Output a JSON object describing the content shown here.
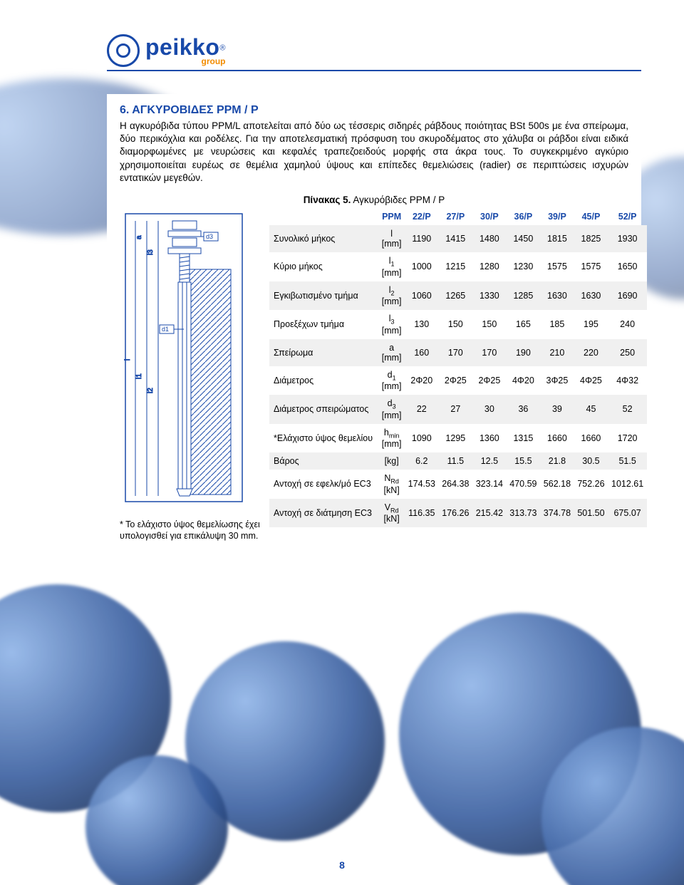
{
  "logo": {
    "name": "peikko",
    "sub": "group"
  },
  "section": {
    "number": "6.",
    "title": "ΑΓΚΥΡΟΒΙΔΕΣ PPM / P"
  },
  "paragraph": "Η αγκυρόβιδα τύπου PPM/L αποτελείται από δύο ως τέσσερις σιδηρές ράβδους ποιότητας BSt 500s με ένα σπείρωμα, δύο περικόχλια και ροδέλες. Για την αποτελεσματική πρόσφυση του σκυροδέματος στο χάλυβα οι ράβδοι είναι ειδικά διαμορφωμένες με νευρώσεις και κεφαλές τραπεζοειδούς μορφής στα άκρα τους. Το συγκεκριμένο αγκύριο χρησιμοποιείται ευρέως σε θεμέλια χαμηλού ύψους και επίπεδες θεμελιώσεις (radier) σε περιπτώσεις ισχυρών εντατικών μεγεθών.",
  "table": {
    "caption_bold": "Πίνακας 5.",
    "caption_rest": " Αγκυρόβιδες PPM / P",
    "head": [
      "PPM",
      "22/P",
      "27/P",
      "30/P",
      "36/P",
      "39/P",
      "45/P",
      "52/P"
    ],
    "rows": [
      {
        "label": "Συνολικό μήκος",
        "sym": "l",
        "unit": "[mm]",
        "v": [
          "1190",
          "1415",
          "1480",
          "1450",
          "1815",
          "1825",
          "1930"
        ]
      },
      {
        "label": "Κύριο μήκος",
        "sym": "l",
        "sub": "1",
        "unit": "[mm]",
        "v": [
          "1000",
          "1215",
          "1280",
          "1230",
          "1575",
          "1575",
          "1650"
        ]
      },
      {
        "label": "Εγκιβωτισμένο τμήμα",
        "sym": "l",
        "sub": "2",
        "unit": "[mm]",
        "v": [
          "1060",
          "1265",
          "1330",
          "1285",
          "1630",
          "1630",
          "1690"
        ]
      },
      {
        "label": "Προεξέχων τμήμα",
        "sym": "l",
        "sub": "3",
        "unit": "[mm]",
        "v": [
          "130",
          "150",
          "150",
          "165",
          "185",
          "195",
          "240"
        ]
      },
      {
        "label": "Σπείρωμα",
        "sym": "a",
        "unit": "[mm]",
        "v": [
          "160",
          "170",
          "170",
          "190",
          "210",
          "220",
          "250"
        ]
      },
      {
        "label": "Διάμετρος",
        "sym": "d",
        "sub": "1",
        "unit": "[mm]",
        "v": [
          "2Φ20",
          "2Φ25",
          "2Φ25",
          "4Φ20",
          "3Φ25",
          "4Φ25",
          "4Φ32"
        ]
      },
      {
        "label": "Διάμετρος σπειρώματος",
        "sym": "d",
        "sub": "3",
        "unit": "[mm]",
        "v": [
          "22",
          "27",
          "30",
          "36",
          "39",
          "45",
          "52"
        ]
      },
      {
        "label": "*Ελάχιστο ύψος θεμελίου",
        "sym": "h",
        "sub": "min",
        "unit": "[mm]",
        "v": [
          "1090",
          "1295",
          "1360",
          "1315",
          "1660",
          "1660",
          "1720"
        ]
      },
      {
        "label": "Βάρος",
        "sym": "",
        "unit": "[kg]",
        "v": [
          "6.2",
          "11.5",
          "12.5",
          "15.5",
          "21.8",
          "30.5",
          "51.5"
        ]
      },
      {
        "label": "Αντοχή σε εφελκ/μό EC3",
        "sym": "N",
        "sub": "Rd",
        "unit": "[kN]",
        "v": [
          "174.53",
          "264.38",
          "323.14",
          "470.59",
          "562.18",
          "752.26",
          "1012.61"
        ]
      },
      {
        "label": "Αντοχή σε διάτμηση EC3",
        "sym": "V",
        "sub": "Rd",
        "unit": "[kN]",
        "v": [
          "116.35",
          "176.26",
          "215.42",
          "313.73",
          "374.78",
          "501.50",
          "675.07"
        ]
      }
    ]
  },
  "footnote": "* Το ελάχιστο ύψος θεμελίωσης έχει υπολογισθεί για επικάλυψη 30 mm.",
  "page_number": "8",
  "colors": {
    "brand": "#1849a9",
    "accent": "#f28c00",
    "row_dark": "#f0f0f0"
  }
}
